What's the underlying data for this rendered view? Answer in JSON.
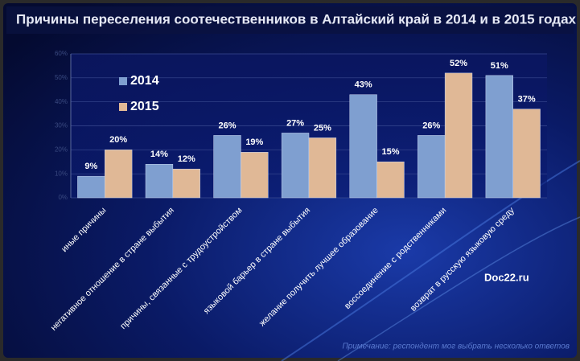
{
  "chart_data": {
    "type": "bar",
    "title": "Причины переселения соотечественников в Алтайский край в 2014 и в 2015 годах",
    "categories": [
      "иные причины",
      "негативное отношение в стране выбытия",
      "причины, связанные с трудоустройством",
      "языковой барьер в стране выбытия",
      "желание получить лучшее образование",
      "воссоединение с родственниками",
      "возврат в русскую языковую среду"
    ],
    "series": [
      {
        "name": "2014",
        "color": "#7f9fd0",
        "values": [
          9,
          14,
          26,
          27,
          43,
          26,
          51
        ],
        "value_labels": [
          "9%",
          "14%",
          "26%",
          "27%",
          "43%",
          "26%",
          "51%"
        ]
      },
      {
        "name": "2015",
        "color": "#e0b896",
        "values": [
          20,
          12,
          19,
          25,
          15,
          52,
          37
        ],
        "value_labels": [
          "20%",
          "12%",
          "19%",
          "25%",
          "15%",
          "52%",
          "37%"
        ]
      }
    ],
    "ylim": [
      0,
      60
    ],
    "yticks": [
      {
        "value": 0,
        "label": "0%"
      },
      {
        "value": 10,
        "label": "10%"
      },
      {
        "value": 20,
        "label": "20%"
      },
      {
        "value": 30,
        "label": "30%"
      },
      {
        "value": 40,
        "label": "40%"
      },
      {
        "value": 50,
        "label": "50%"
      },
      {
        "value": 60,
        "label": "60%"
      }
    ],
    "grid": true,
    "legend": "upper left",
    "watermark": "Doc22.ru",
    "note": "Примечание: респондент мог выбрать несколько ответов"
  }
}
